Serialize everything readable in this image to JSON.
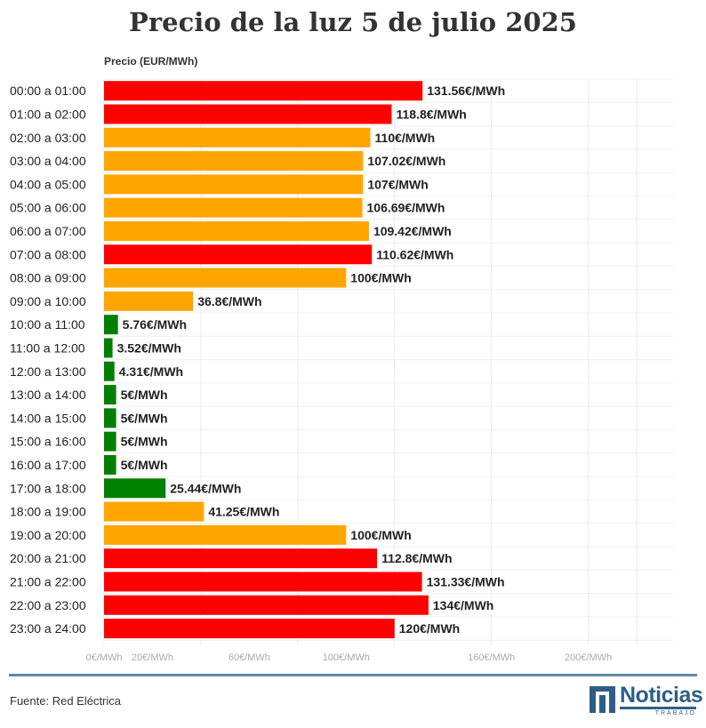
{
  "chart_data": {
    "type": "bar",
    "orientation": "horizontal",
    "title": "Precio de la luz 5 de julio 2025",
    "xlabel": "Precio (EUR/MWh)",
    "ylabel": "",
    "xlim": [
      0,
      234
    ],
    "grid": true,
    "categories": [
      "00:00 a 01:00",
      "01:00 a 02:00",
      "02:00 a 03:00",
      "03:00 a 04:00",
      "04:00 a 05:00",
      "05:00 a 06:00",
      "06:00 a 07:00",
      "07:00 a 08:00",
      "08:00 a 09:00",
      "09:00 a 10:00",
      "10:00 a 11:00",
      "11:00 a 12:00",
      "12:00 a 13:00",
      "13:00 a 14:00",
      "14:00 a 15:00",
      "15:00 a 16:00",
      "16:00 a 17:00",
      "17:00 a 18:00",
      "18:00 a 19:00",
      "19:00 a 20:00",
      "20:00 a 21:00",
      "21:00 a 22:00",
      "22:00 a 23:00",
      "23:00 a 24:00"
    ],
    "values": [
      131.56,
      118.8,
      110,
      107.02,
      107,
      106.69,
      109.42,
      110.62,
      100,
      36.8,
      5.76,
      3.52,
      4.31,
      5,
      5,
      5,
      5,
      25.44,
      41.25,
      100,
      112.8,
      131.33,
      134,
      120
    ],
    "value_labels": [
      "131.56€/MWh",
      "118.8€/MWh",
      "110€/MWh",
      "107.02€/MWh",
      "107€/MWh",
      "106.69€/MWh",
      "109.42€/MWh",
      "110.62€/MWh",
      "100€/MWh",
      "36.8€/MWh",
      "5.76€/MWh",
      "3.52€/MWh",
      "4.31€/MWh",
      "5€/MWh",
      "5€/MWh",
      "5€/MWh",
      "5€/MWh",
      "25.44€/MWh",
      "41.25€/MWh",
      "100€/MWh",
      "112.8€/MWh",
      "131.33€/MWh",
      "134€/MWh",
      "120€/MWh"
    ],
    "bar_colors": [
      "#ff0000",
      "#ff0000",
      "#ffa500",
      "#ffa500",
      "#ffa500",
      "#ffa500",
      "#ffa500",
      "#ff0000",
      "#ffa500",
      "#ffa500",
      "#008000",
      "#008000",
      "#008000",
      "#008000",
      "#008000",
      "#008000",
      "#008000",
      "#008000",
      "#ffa500",
      "#ffa500",
      "#ff0000",
      "#ff0000",
      "#ff0000",
      "#ff0000"
    ],
    "x_ticks": [
      {
        "value": 0,
        "label": "0€/MWh"
      },
      {
        "value": 20,
        "label": "20€/MWh"
      },
      {
        "value": 60,
        "label": "60€/MWh"
      },
      {
        "value": 100,
        "label": "100€/MWh"
      },
      {
        "value": 160,
        "label": "160€/MWh"
      },
      {
        "value": 200,
        "label": "200€/MWh"
      }
    ],
    "gridlines": [
      0,
      40,
      80,
      120,
      160,
      200,
      220
    ]
  },
  "footer": {
    "source": "Fuente: Red Eléctrica",
    "logo_word": "Noticias",
    "logo_sub": "TRABAJO"
  }
}
